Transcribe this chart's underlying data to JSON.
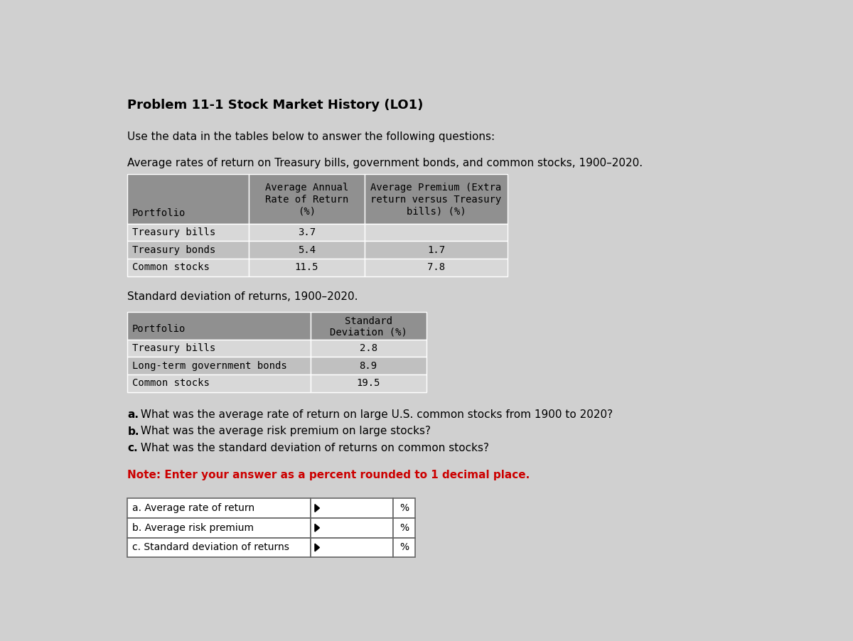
{
  "title": "Problem 11-1 Stock Market History (LO1)",
  "intro_text": "Use the data in the tables below to answer the following questions:",
  "table1_title": "Average rates of return on Treasury bills, government bonds, and common stocks, 1900–2020.",
  "table1_col0_header": "Portfolio",
  "table1_col1_header": "Average Annual\nRate of Return\n(%)",
  "table1_col2_header": "Average Premium (Extra\nreturn versus Treasury\nbills) (%)",
  "table1_rows": [
    [
      "Treasury bills",
      "3.7",
      ""
    ],
    [
      "Treasury bonds",
      "5.4",
      "1.7"
    ],
    [
      "Common stocks",
      "11.5",
      "7.8"
    ]
  ],
  "table2_title": "Standard deviation of returns, 1900–2020.",
  "table2_col0_header": "Portfolio",
  "table2_col1_header": "Standard\nDeviation (%)",
  "table2_rows": [
    [
      "Treasury bills",
      "2.8"
    ],
    [
      "Long-term government bonds",
      "8.9"
    ],
    [
      "Common stocks",
      "19.5"
    ]
  ],
  "questions_bold": [
    "a.",
    "b.",
    "c."
  ],
  "questions_text": [
    " What was the average rate of return on large U.S. common stocks from 1900 to 2020?",
    " What was the average risk premium on large stocks?",
    " What was the standard deviation of returns on common stocks?"
  ],
  "note": "Note: Enter your answer as a percent rounded to 1 decimal place.",
  "answer_labels": [
    "a. Average rate of return",
    "b. Average risk premium",
    "c. Standard deviation of returns"
  ],
  "bg_color": "#d0d0d0",
  "table_header_bg": "#909090",
  "table_row1_bg": "#d8d8d8",
  "table_row2_bg": "#c0c0c0",
  "note_color": "#cc0000",
  "title_fontsize": 13,
  "body_fontsize": 11,
  "table_fontsize": 10,
  "answer_fontsize": 10
}
